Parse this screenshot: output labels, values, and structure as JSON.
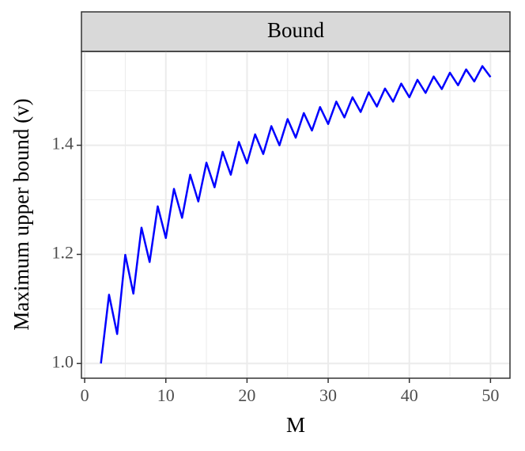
{
  "chart_data": {
    "type": "line",
    "strip": "Bound",
    "x_label": "M",
    "y_label": "Maximum upper bound (v)",
    "x": [
      2,
      3,
      4,
      5,
      6,
      7,
      8,
      9,
      10,
      11,
      12,
      13,
      14,
      15,
      16,
      17,
      18,
      19,
      20,
      21,
      22,
      23,
      24,
      25,
      26,
      27,
      28,
      29,
      30,
      31,
      32,
      33,
      34,
      35,
      36,
      37,
      38,
      39,
      40,
      41,
      42,
      43,
      44,
      45,
      46,
      47,
      48,
      49,
      50
    ],
    "series": [
      {
        "color": "#0000ff",
        "values": [
          1.0,
          1.126,
          1.054,
          1.199,
          1.128,
          1.249,
          1.186,
          1.288,
          1.23,
          1.32,
          1.267,
          1.346,
          1.297,
          1.368,
          1.323,
          1.388,
          1.346,
          1.406,
          1.367,
          1.42,
          1.384,
          1.435,
          1.4,
          1.448,
          1.414,
          1.459,
          1.427,
          1.47,
          1.439,
          1.48,
          1.451,
          1.488,
          1.461,
          1.497,
          1.471,
          1.504,
          1.48,
          1.513,
          1.488,
          1.52,
          1.496,
          1.526,
          1.503,
          1.533,
          1.51,
          1.539,
          1.517,
          1.545,
          1.525
        ]
      }
    ],
    "xlim": [
      -0.4,
      52.4
    ],
    "ylim": [
      0.973,
      1.572
    ],
    "xticks": [
      0,
      10,
      20,
      30,
      40,
      50
    ],
    "yticks": [
      {
        "value": 1.0,
        "label": "1.0"
      },
      1.2,
      1.4
    ],
    "grid": true,
    "minor_grid": true
  }
}
